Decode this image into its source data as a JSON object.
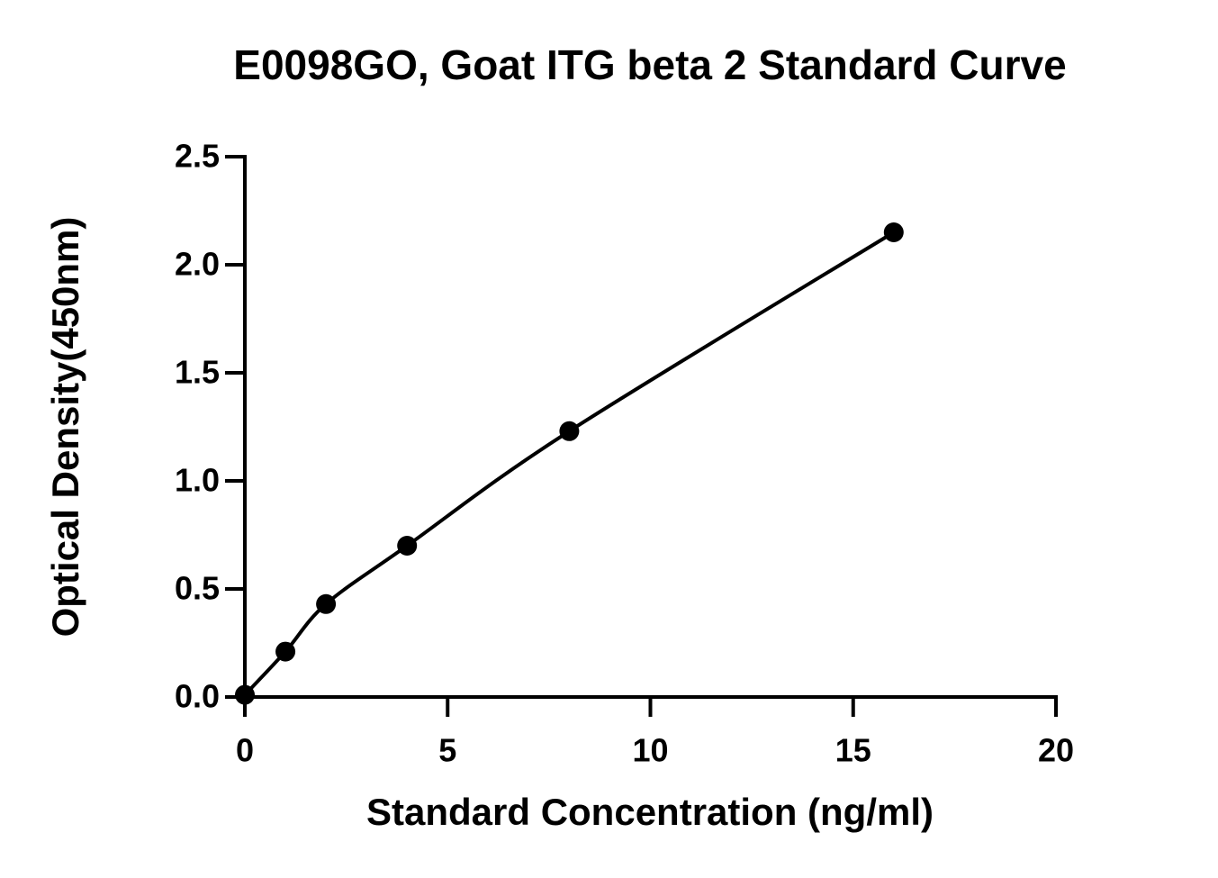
{
  "chart_data": {
    "type": "scatter",
    "title": "E0098GO, Goat ITG beta 2 Standard Curve",
    "x_label": "Standard Concentration (ng/ml)",
    "y_label": "Optical Density(450nm)",
    "series": [
      {
        "x": [
          0,
          1,
          2,
          4,
          8,
          16
        ],
        "values": [
          0.01,
          0.21,
          0.43,
          0.7,
          1.23,
          2.15
        ],
        "color": "#000000"
      }
    ],
    "xlim": [
      0,
      20
    ],
    "xticks": [
      0,
      5,
      10,
      15,
      20
    ],
    "ylim": [
      0,
      2.5
    ],
    "yticks": [
      {
        "value": 0,
        "label": "0.0"
      },
      {
        "value": 0.5,
        "label": "0.5"
      },
      {
        "value": 1,
        "label": "1.0"
      },
      {
        "value": 1.5,
        "label": "1.5"
      },
      {
        "value": 2,
        "label": "2.0"
      },
      {
        "value": 2.5,
        "label": "2.5"
      }
    ],
    "fit_curve": true,
    "grid": false
  }
}
